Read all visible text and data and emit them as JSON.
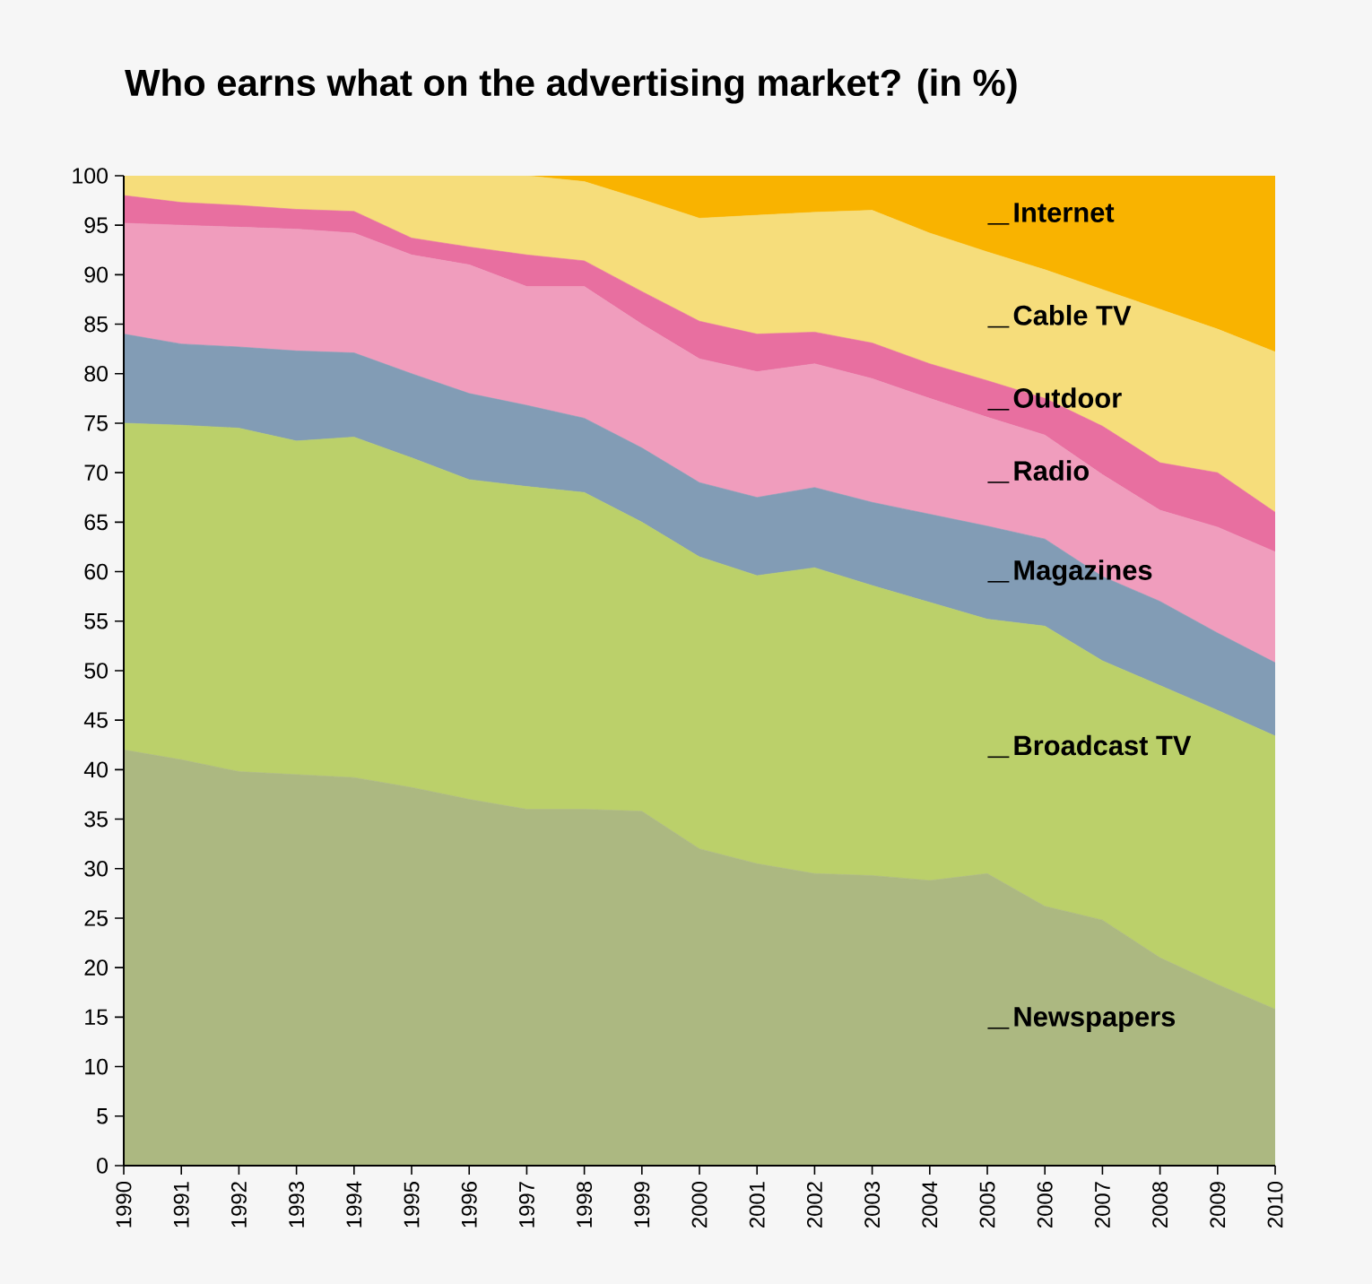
{
  "chart_data": {
    "type": "area",
    "stacked": true,
    "title": "Who earns what on the advertising market? (in %)",
    "x": [
      1990,
      1991,
      1992,
      1993,
      1994,
      1995,
      1996,
      1997,
      1998,
      1999,
      2000,
      2001,
      2002,
      2003,
      2004,
      2005,
      2006,
      2007,
      2008,
      2009,
      2010
    ],
    "xlim": [
      1990,
      2010
    ],
    "xticks": [
      1990,
      1991,
      1992,
      1993,
      1994,
      1995,
      1996,
      1997,
      1998,
      1999,
      2000,
      2001,
      2002,
      2003,
      2004,
      2005,
      2006,
      2007,
      2008,
      2009,
      2010
    ],
    "ylim": [
      0,
      100
    ],
    "yticks": [
      0,
      5,
      10,
      15,
      20,
      25,
      30,
      35,
      40,
      45,
      50,
      55,
      60,
      65,
      70,
      75,
      80,
      85,
      90,
      95,
      100
    ],
    "series": [
      {
        "name": "Newspapers",
        "color": "#acb881",
        "values": [
          42,
          41,
          39.8,
          39.5,
          39.2,
          38.2,
          37,
          36,
          36,
          35.8,
          32,
          30.5,
          29.5,
          29.3,
          28.8,
          29.5,
          26.2,
          24.8,
          21,
          18.3,
          15.8
        ]
      },
      {
        "name": "Broadcast TV",
        "color": "#bbd06a",
        "values": [
          33,
          33.8,
          34.7,
          33.7,
          34.4,
          33.3,
          32.3,
          32.6,
          32,
          29.2,
          29.5,
          29.1,
          30.9,
          29.3,
          28.1,
          25.7,
          28.3,
          26.2,
          27.5,
          27.7,
          27.6
        ]
      },
      {
        "name": "Magazines",
        "color": "#829cb5",
        "values": [
          9,
          8.2,
          8.2,
          9.1,
          8.5,
          8.5,
          8.7,
          8.2,
          7.5,
          7.5,
          7.5,
          7.9,
          8.1,
          8.4,
          8.9,
          9.4,
          8.8,
          8.5,
          8.5,
          7.8,
          7.4
        ]
      },
      {
        "name": "Radio",
        "color": "#f09dbd",
        "values": [
          11.2,
          12,
          12.1,
          12.3,
          12.1,
          12,
          13,
          12,
          13.3,
          12.5,
          12.5,
          12.7,
          12.5,
          12.5,
          11.7,
          11,
          10.5,
          10.3,
          9.2,
          10.7,
          11.2
        ]
      },
      {
        "name": "Outdoor",
        "color": "#e86fa0",
        "values": [
          2.8,
          2.3,
          2.2,
          2,
          2.2,
          1.7,
          1.8,
          3.2,
          2.6,
          3.3,
          3.8,
          3.8,
          3.2,
          3.6,
          3.5,
          3.7,
          3.7,
          4.9,
          4.8,
          5.5,
          4
        ]
      },
      {
        "name": "Cable TV",
        "color": "#f6dd7b",
        "values": [
          2,
          2.7,
          3,
          3.4,
          3.6,
          6.3,
          7.2,
          8,
          8,
          9.3,
          10.4,
          12,
          12.1,
          13.4,
          13.2,
          13,
          13,
          13.8,
          15.5,
          14.5,
          16.2
        ]
      },
      {
        "name": "Internet",
        "color": "#f9b300",
        "values": [
          0,
          0,
          0,
          0,
          0,
          0,
          0,
          0,
          0.6,
          2.4,
          4.3,
          4,
          3.7,
          3.5,
          5.8,
          7.7,
          9.5,
          11.5,
          13.5,
          15.5,
          17.8
        ]
      }
    ]
  }
}
